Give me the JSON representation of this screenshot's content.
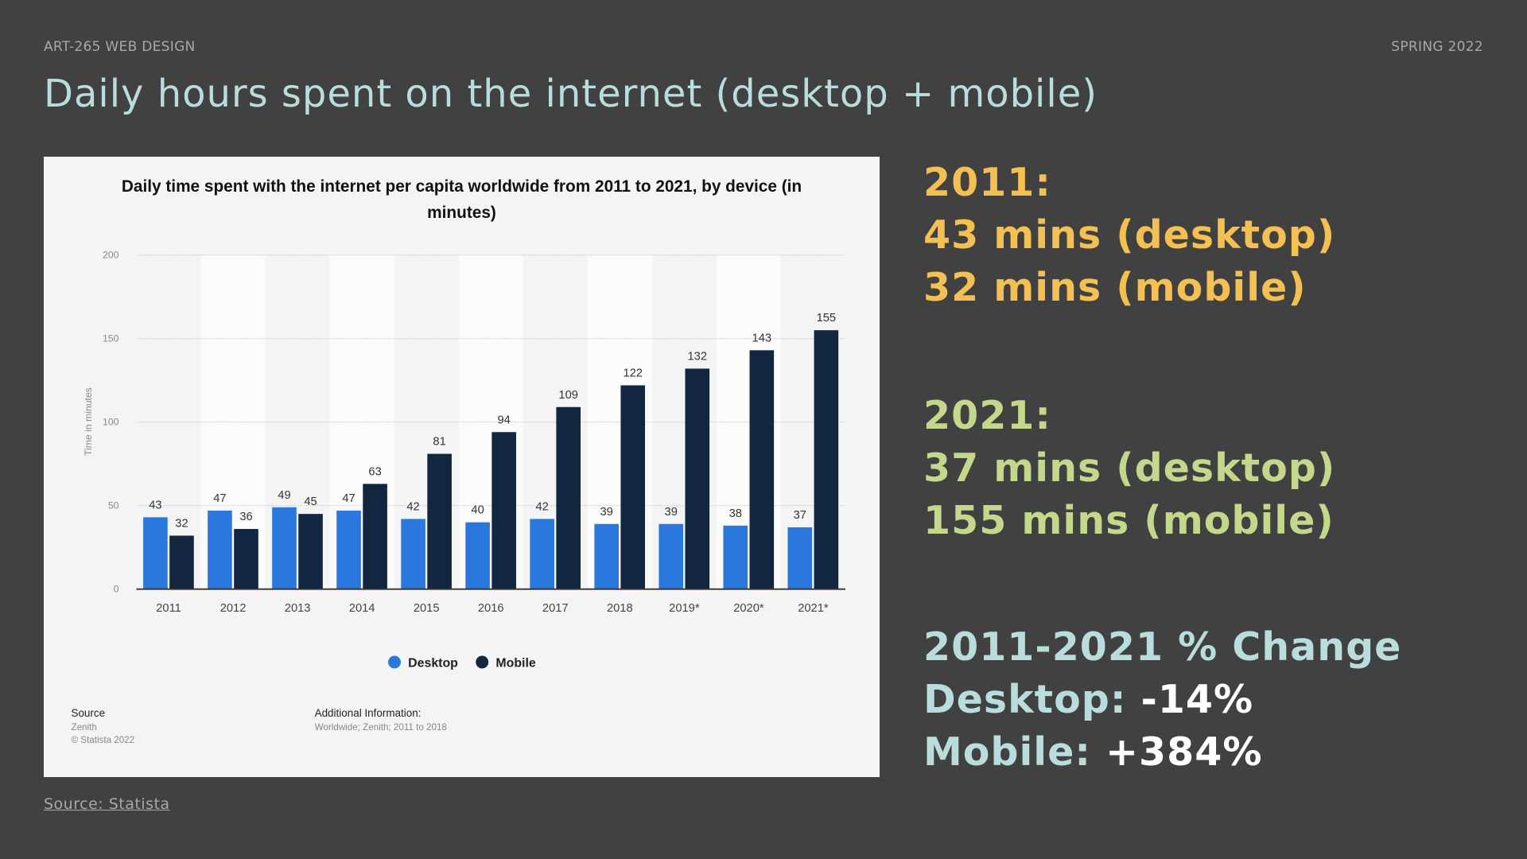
{
  "header": {
    "course": "ART-265 WEB DESIGN",
    "term": "SPRING 2022",
    "title": "Daily hours spent on the internet (desktop + mobile)"
  },
  "chart_data": {
    "type": "bar",
    "title": "Daily time spent with the internet per capita worldwide from 2011 to 2021, by device (in",
    "title_line2": "minutes)",
    "ylabel": "Time in minutes",
    "xlabel": "",
    "ylim": [
      0,
      200
    ],
    "yticks": [
      "0",
      "50",
      "100",
      "150",
      "200"
    ],
    "categories": [
      "2011",
      "2012",
      "2013",
      "2014",
      "2015",
      "2016",
      "2017",
      "2018",
      "2019*",
      "2020*",
      "2021*"
    ],
    "series": [
      {
        "name": "Desktop",
        "color": "#2a77de",
        "values": [
          43,
          47,
          49,
          47,
          42,
          40,
          42,
          39,
          39,
          38,
          37
        ]
      },
      {
        "name": "Mobile",
        "color": "#12263f",
        "values": [
          32,
          36,
          45,
          63,
          81,
          94,
          109,
          122,
          132,
          143,
          155
        ]
      }
    ],
    "legend": "bottom-center",
    "grid": true
  },
  "chart_footer": {
    "source_label": "Source",
    "source_name": "Zenith",
    "copyright": "© Statista 2022",
    "info_label": "Additional Information:",
    "info_text": "Worldwide; Zenith; 2011 to 2018"
  },
  "stats": {
    "y2011": {
      "label": "2011:",
      "desktop": "43 mins (desktop)",
      "mobile": "32 mins (mobile)"
    },
    "y2021": {
      "label": "2021:",
      "desktop": "37 mins (desktop)",
      "mobile": "155 mins (mobile)"
    },
    "change": {
      "label": "2011-2021 % Change",
      "desktop_label": "Desktop: ",
      "desktop_value": "-14%",
      "mobile_label": "Mobile: ",
      "mobile_value": "+384%"
    }
  },
  "source_link": "Source: Statista"
}
